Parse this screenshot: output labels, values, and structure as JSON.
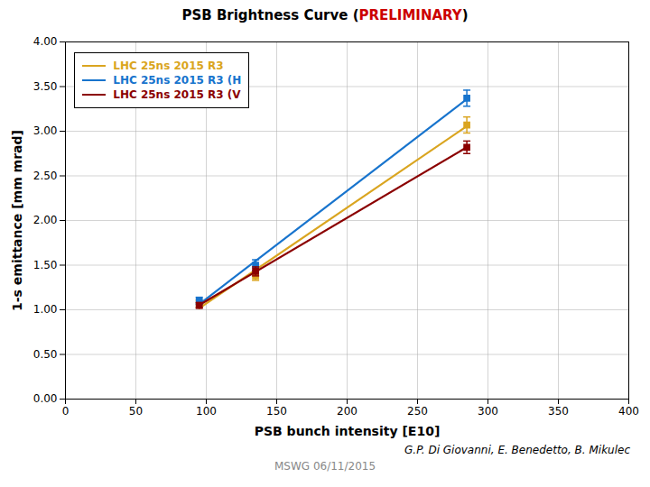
{
  "chart_data": {
    "type": "scatter",
    "title": "PSB Brightness Curve (PRELIMINARY)",
    "title_highlight": "PRELIMINARY",
    "title_highlight_color": "#CC0000",
    "xlabel": "PSB bunch intensity [E10]",
    "ylabel": "1-s emittance [mm mrad]",
    "xlim": [
      0,
      400
    ],
    "ylim": [
      0.0,
      4.0
    ],
    "xticks": [
      0,
      50,
      100,
      150,
      200,
      250,
      300,
      350,
      400
    ],
    "yticks": [
      {
        "value": 0.0,
        "label": "0.00"
      },
      {
        "value": 0.5,
        "label": "0.50"
      },
      {
        "value": 1.0,
        "label": "1.00"
      },
      {
        "value": 1.5,
        "label": "1.50"
      },
      {
        "value": 2.0,
        "label": "2.00"
      },
      {
        "value": 2.5,
        "label": "2.50"
      },
      {
        "value": 3.0,
        "label": "3.00"
      },
      {
        "value": 3.5,
        "label": "3.50"
      },
      {
        "value": 4.0,
        "label": "4.00"
      }
    ],
    "grid": true,
    "legend": "upper left",
    "marker": "square",
    "series": [
      {
        "name": "LHC 25ns 2015 R3",
        "color": "#DAA520",
        "x": [
          95,
          135,
          285
        ],
        "values": [
          1.07,
          1.38,
          3.07
        ],
        "yerr": [
          0.04,
          0.05,
          0.09
        ],
        "fit_x": [
          95,
          285
        ],
        "fit_values": [
          1.0174,
          3.056
        ]
      },
      {
        "name": "LHC 25ns 2015 R3 (H",
        "color": "#1874CD",
        "x": [
          95,
          135,
          285
        ],
        "values": [
          1.1,
          1.5,
          3.37
        ],
        "yerr": [
          0.04,
          0.06,
          0.09
        ],
        "fit_x": [
          95,
          285
        ],
        "fit_values": [
          1.0631,
          3.3602
        ]
      },
      {
        "name": "LHC 25ns 2015 R3 (V",
        "color": "#8B0000",
        "x": [
          95,
          135,
          285
        ],
        "values": [
          1.05,
          1.43,
          2.82
        ],
        "yerr": [
          0.03,
          0.05,
          0.07
        ],
        "fit_x": [
          95,
          285
        ],
        "fit_values": [
          1.0535,
          2.8209
        ]
      }
    ],
    "author": "G.P. Di Giovanni, E. Benedetto, B. Mikulec",
    "footer": "MSWG 06/11/2015"
  }
}
